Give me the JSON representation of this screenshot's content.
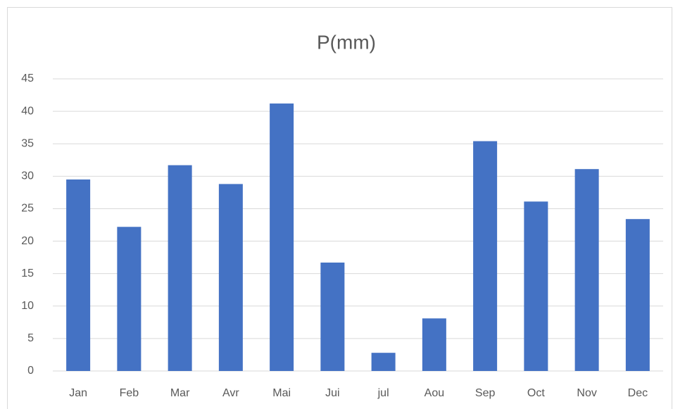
{
  "chart_data": {
    "type": "bar",
    "title": "P(mm)",
    "categories": [
      "Jan",
      "Feb",
      "Mar",
      "Avr",
      "Mai",
      "Jui",
      "jul",
      "Aou",
      "Sep",
      "Oct",
      "Nov",
      "Dec"
    ],
    "values": [
      29.5,
      22.2,
      31.7,
      28.8,
      41.2,
      16.7,
      2.8,
      8.1,
      35.4,
      26.1,
      31.1,
      23.4
    ],
    "color": "#4472c4",
    "ylim": [
      0,
      45
    ],
    "yticks": [
      0,
      5,
      10,
      15,
      20,
      25,
      30,
      35,
      40,
      45
    ],
    "grid": true
  }
}
